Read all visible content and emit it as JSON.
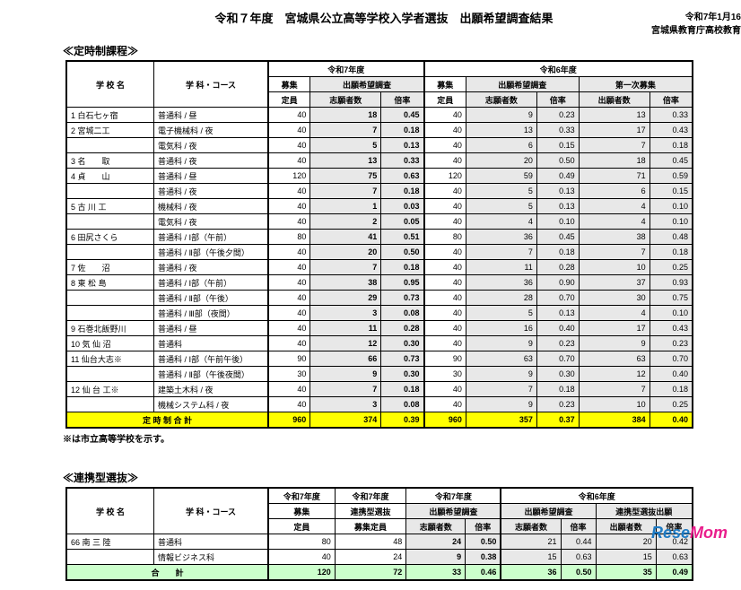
{
  "header": {
    "title": "令和７年度　宮城県公立高等学校入学者選抜　出願希望調査結果",
    "date": "令和7年1月16日",
    "org": "宮城県教育庁高校教育課"
  },
  "section1": {
    "title": "≪定時制課程≫",
    "headers": {
      "school": "学 校 名",
      "course": "学 科・コース",
      "y7": "令和7年度",
      "y6": "令和6年度",
      "cap": "募集",
      "cap2": "定員",
      "survey": "出願希望調査",
      "applicants": "志願者数",
      "ratio": "倍率",
      "first": "第一次募集",
      "appl2": "出願者数"
    },
    "rows": [
      {
        "n": "1",
        "sch": "白石七ヶ宿",
        "crs": "普通科 / 昼",
        "c7": 40,
        "a7": 18,
        "r7": "0.45",
        "c6": 40,
        "a6": 9,
        "r6": "0.23",
        "f6": 13,
        "fr6": "0.33"
      },
      {
        "n": "2",
        "sch": "宮城二工",
        "crs": "電子機械科 / 夜",
        "c7": 40,
        "a7": 7,
        "r7": "0.18",
        "c6": 40,
        "a6": 13,
        "r6": "0.33",
        "f6": 17,
        "fr6": "0.43"
      },
      {
        "n": "",
        "sch": "",
        "crs": "電気科 / 夜",
        "c7": 40,
        "a7": 5,
        "r7": "0.13",
        "c6": 40,
        "a6": 6,
        "r6": "0.15",
        "f6": 7,
        "fr6": "0.18"
      },
      {
        "n": "3",
        "sch": "名　　取",
        "crs": "普通科 / 夜",
        "c7": 40,
        "a7": 13,
        "r7": "0.33",
        "c6": 40,
        "a6": 20,
        "r6": "0.50",
        "f6": 18,
        "fr6": "0.45"
      },
      {
        "n": "4",
        "sch": "貞　　山",
        "crs": "普通科 / 昼",
        "c7": 120,
        "a7": 75,
        "r7": "0.63",
        "c6": 120,
        "a6": 59,
        "r6": "0.49",
        "f6": 71,
        "fr6": "0.59"
      },
      {
        "n": "",
        "sch": "",
        "crs": "普通科 / 夜",
        "c7": 40,
        "a7": 7,
        "r7": "0.18",
        "c6": 40,
        "a6": 5,
        "r6": "0.13",
        "f6": 6,
        "fr6": "0.15"
      },
      {
        "n": "5",
        "sch": "古 川 工",
        "crs": "機械科 / 夜",
        "c7": 40,
        "a7": 1,
        "r7": "0.03",
        "c6": 40,
        "a6": 5,
        "r6": "0.13",
        "f6": 4,
        "fr6": "0.10"
      },
      {
        "n": "",
        "sch": "",
        "crs": "電気科 / 夜",
        "c7": 40,
        "a7": 2,
        "r7": "0.05",
        "c6": 40,
        "a6": 4,
        "r6": "0.10",
        "f6": 4,
        "fr6": "0.10"
      },
      {
        "n": "6",
        "sch": "田尻さくら",
        "crs": "普通科 / Ⅰ部（午前）",
        "c7": 80,
        "a7": 41,
        "r7": "0.51",
        "c6": 80,
        "a6": 36,
        "r6": "0.45",
        "f6": 38,
        "fr6": "0.48"
      },
      {
        "n": "",
        "sch": "",
        "crs": "普通科 / Ⅱ部（午後夕間）",
        "c7": 40,
        "a7": 20,
        "r7": "0.50",
        "c6": 40,
        "a6": 7,
        "r6": "0.18",
        "f6": 7,
        "fr6": "0.18"
      },
      {
        "n": "7",
        "sch": "佐　　沼",
        "crs": "普通科 / 夜",
        "c7": 40,
        "a7": 7,
        "r7": "0.18",
        "c6": 40,
        "a6": 11,
        "r6": "0.28",
        "f6": 10,
        "fr6": "0.25"
      },
      {
        "n": "8",
        "sch": "東 松 島",
        "crs": "普通科 / Ⅰ部（午前）",
        "c7": 40,
        "a7": 38,
        "r7": "0.95",
        "c6": 40,
        "a6": 36,
        "r6": "0.90",
        "f6": 37,
        "fr6": "0.93"
      },
      {
        "n": "",
        "sch": "",
        "crs": "普通科 / Ⅱ部（午後）",
        "c7": 40,
        "a7": 29,
        "r7": "0.73",
        "c6": 40,
        "a6": 28,
        "r6": "0.70",
        "f6": 30,
        "fr6": "0.75"
      },
      {
        "n": "",
        "sch": "",
        "crs": "普通科 / Ⅲ部（夜間）",
        "c7": 40,
        "a7": 3,
        "r7": "0.08",
        "c6": 40,
        "a6": 5,
        "r6": "0.13",
        "f6": 4,
        "fr6": "0.10"
      },
      {
        "n": "9",
        "sch": "石巻北飯野川",
        "crs": "普通科 / 昼",
        "c7": 40,
        "a7": 11,
        "r7": "0.28",
        "c6": 40,
        "a6": 16,
        "r6": "0.40",
        "f6": 17,
        "fr6": "0.43"
      },
      {
        "n": "10",
        "sch": "気 仙 沼",
        "crs": "普通科",
        "c7": 40,
        "a7": 12,
        "r7": "0.30",
        "c6": 40,
        "a6": 9,
        "r6": "0.23",
        "f6": 9,
        "fr6": "0.23"
      },
      {
        "n": "11",
        "sch": "仙台大志※",
        "crs": "普通科 / Ⅰ部（午前午後）",
        "c7": 90,
        "a7": 66,
        "r7": "0.73",
        "c6": 90,
        "a6": 63,
        "r6": "0.70",
        "f6": 63,
        "fr6": "0.70"
      },
      {
        "n": "",
        "sch": "",
        "crs": "普通科 / Ⅱ部（午後夜間）",
        "c7": 30,
        "a7": 9,
        "r7": "0.30",
        "c6": 30,
        "a6": 9,
        "r6": "0.30",
        "f6": 12,
        "fr6": "0.40"
      },
      {
        "n": "12",
        "sch": "仙 台 工※",
        "crs": "建築土木科 / 夜",
        "c7": 40,
        "a7": 7,
        "r7": "0.18",
        "c6": 40,
        "a6": 7,
        "r6": "0.18",
        "f6": 7,
        "fr6": "0.18"
      },
      {
        "n": "",
        "sch": "",
        "crs": "機械システム科 / 夜",
        "c7": 40,
        "a7": 3,
        "r7": "0.08",
        "c6": 40,
        "a6": 9,
        "r6": "0.23",
        "f6": 10,
        "fr6": "0.25"
      }
    ],
    "total": {
      "label": "定 時 制 合 計",
      "c7": 960,
      "a7": 374,
      "r7": "0.39",
      "c6": 960,
      "a6": 357,
      "r6": "0.37",
      "f6": 384,
      "fr6": "0.40"
    },
    "note": "※は市立高等学校を示す。"
  },
  "section2": {
    "title": "≪連携型選抜≫",
    "headers": {
      "linked": "連携型選抜",
      "linkcap": "募集定員",
      "linkapp": "連携型選抜出願"
    },
    "rows": [
      {
        "n": "66",
        "sch": "南 三 陸",
        "crs": "普通科",
        "c7": 80,
        "lc7": 48,
        "a7": 24,
        "r7": "0.50",
        "a6": 21,
        "r6": "0.44",
        "f6": 20,
        "fr6": "0.42"
      },
      {
        "n": "",
        "sch": "",
        "crs": "情報ビジネス科",
        "c7": 40,
        "lc7": 24,
        "a7": 9,
        "r7": "0.38",
        "a6": 15,
        "r6": "0.63",
        "f6": 15,
        "fr6": "0.63"
      }
    ],
    "total": {
      "label": "合　　計",
      "c7": 120,
      "lc7": 72,
      "a7": 33,
      "r7": "0.46",
      "a6": 36,
      "r6": "0.50",
      "f6": 35,
      "fr6": "0.49"
    }
  },
  "logo": {
    "p1": "Rese",
    "p2": "Mom"
  }
}
